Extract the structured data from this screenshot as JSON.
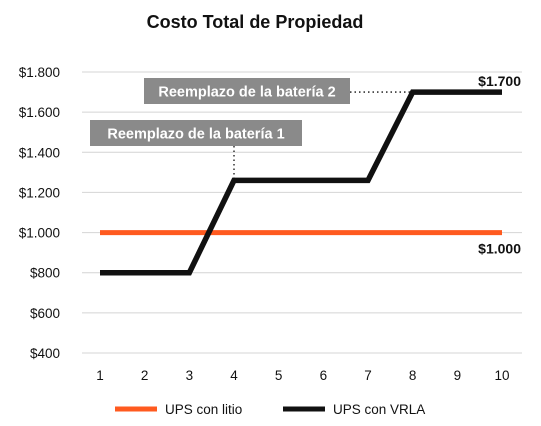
{
  "chart_data": {
    "type": "line",
    "title": "Costo Total de Propiedad",
    "xlabel": "",
    "ylabel": "",
    "x": [
      1,
      2,
      3,
      4,
      5,
      6,
      7,
      8,
      9,
      10
    ],
    "x_tick_labels": [
      "1",
      "2",
      "3",
      "4",
      "5",
      "6",
      "7",
      "8",
      "9",
      "10"
    ],
    "ylim": [
      400,
      1800
    ],
    "y_ticks": [
      400,
      600,
      800,
      1000,
      1200,
      1400,
      1600,
      1800
    ],
    "y_tick_labels": [
      "$400",
      "$600",
      "$800",
      "$1.000",
      "$1.200",
      "$1.400",
      "$1.600",
      "$1.800"
    ],
    "grid": "horizontal",
    "legend_position": "bottom",
    "series": [
      {
        "name": "UPS con litio",
        "color": "#ff5a1f",
        "points": [
          [
            1,
            1000
          ],
          [
            10,
            1000
          ]
        ],
        "end_label": "$1.000"
      },
      {
        "name": "UPS con VRLA",
        "color": "#111111",
        "points": [
          [
            1,
            800
          ],
          [
            3,
            800
          ],
          [
            4,
            1260
          ],
          [
            7,
            1260
          ],
          [
            8,
            1700
          ],
          [
            10,
            1700
          ]
        ],
        "end_label": "$1.700"
      }
    ],
    "annotations": [
      {
        "text": "Reemplazo de la batería 1",
        "x": 4,
        "y": 1260,
        "box_color": "#8a8a8a"
      },
      {
        "text": "Reemplazo de la batería 2",
        "x": 8,
        "y": 1700,
        "box_color": "#8a8a8a"
      }
    ]
  }
}
